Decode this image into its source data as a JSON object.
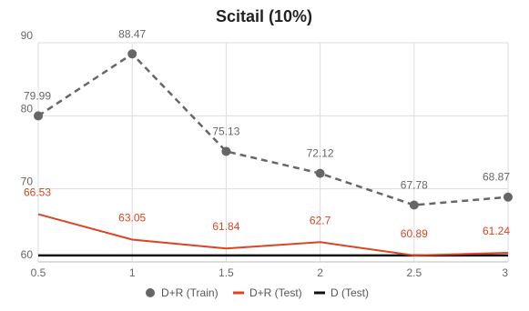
{
  "chart_data": {
    "type": "line",
    "title": "Scitail (10%)",
    "xlabel": "",
    "ylabel": "",
    "x": [
      0.5,
      1,
      1.5,
      2,
      2.5,
      3
    ],
    "x_ticks": [
      "0.5",
      "1",
      "1.5",
      "2",
      "2.5",
      "3"
    ],
    "y_ticks": [
      "60",
      "70",
      "80",
      "90"
    ],
    "ylim": [
      60,
      90
    ],
    "grid": true,
    "legend_position": "bottom",
    "series": [
      {
        "name": "D+R (Train)",
        "values": [
          79.99,
          88.47,
          75.13,
          72.12,
          67.78,
          68.87
        ],
        "labels": [
          "79.99",
          "88.47",
          "75.13",
          "72.12",
          "67.78",
          "68.87"
        ],
        "color": "#666666",
        "style": "dashed-markers"
      },
      {
        "name": "D+R (Test)",
        "values": [
          66.53,
          63.05,
          61.84,
          62.7,
          60.89,
          61.24
        ],
        "labels": [
          "66.53",
          "63.05",
          "61.84",
          "62.7",
          "60.89",
          "61.24"
        ],
        "color": "#dd4422",
        "style": "solid"
      },
      {
        "name": "D (Test)",
        "values": [
          60.89,
          60.89,
          60.89,
          60.89,
          60.89,
          60.89
        ],
        "color": "#111111",
        "style": "solid"
      }
    ]
  }
}
